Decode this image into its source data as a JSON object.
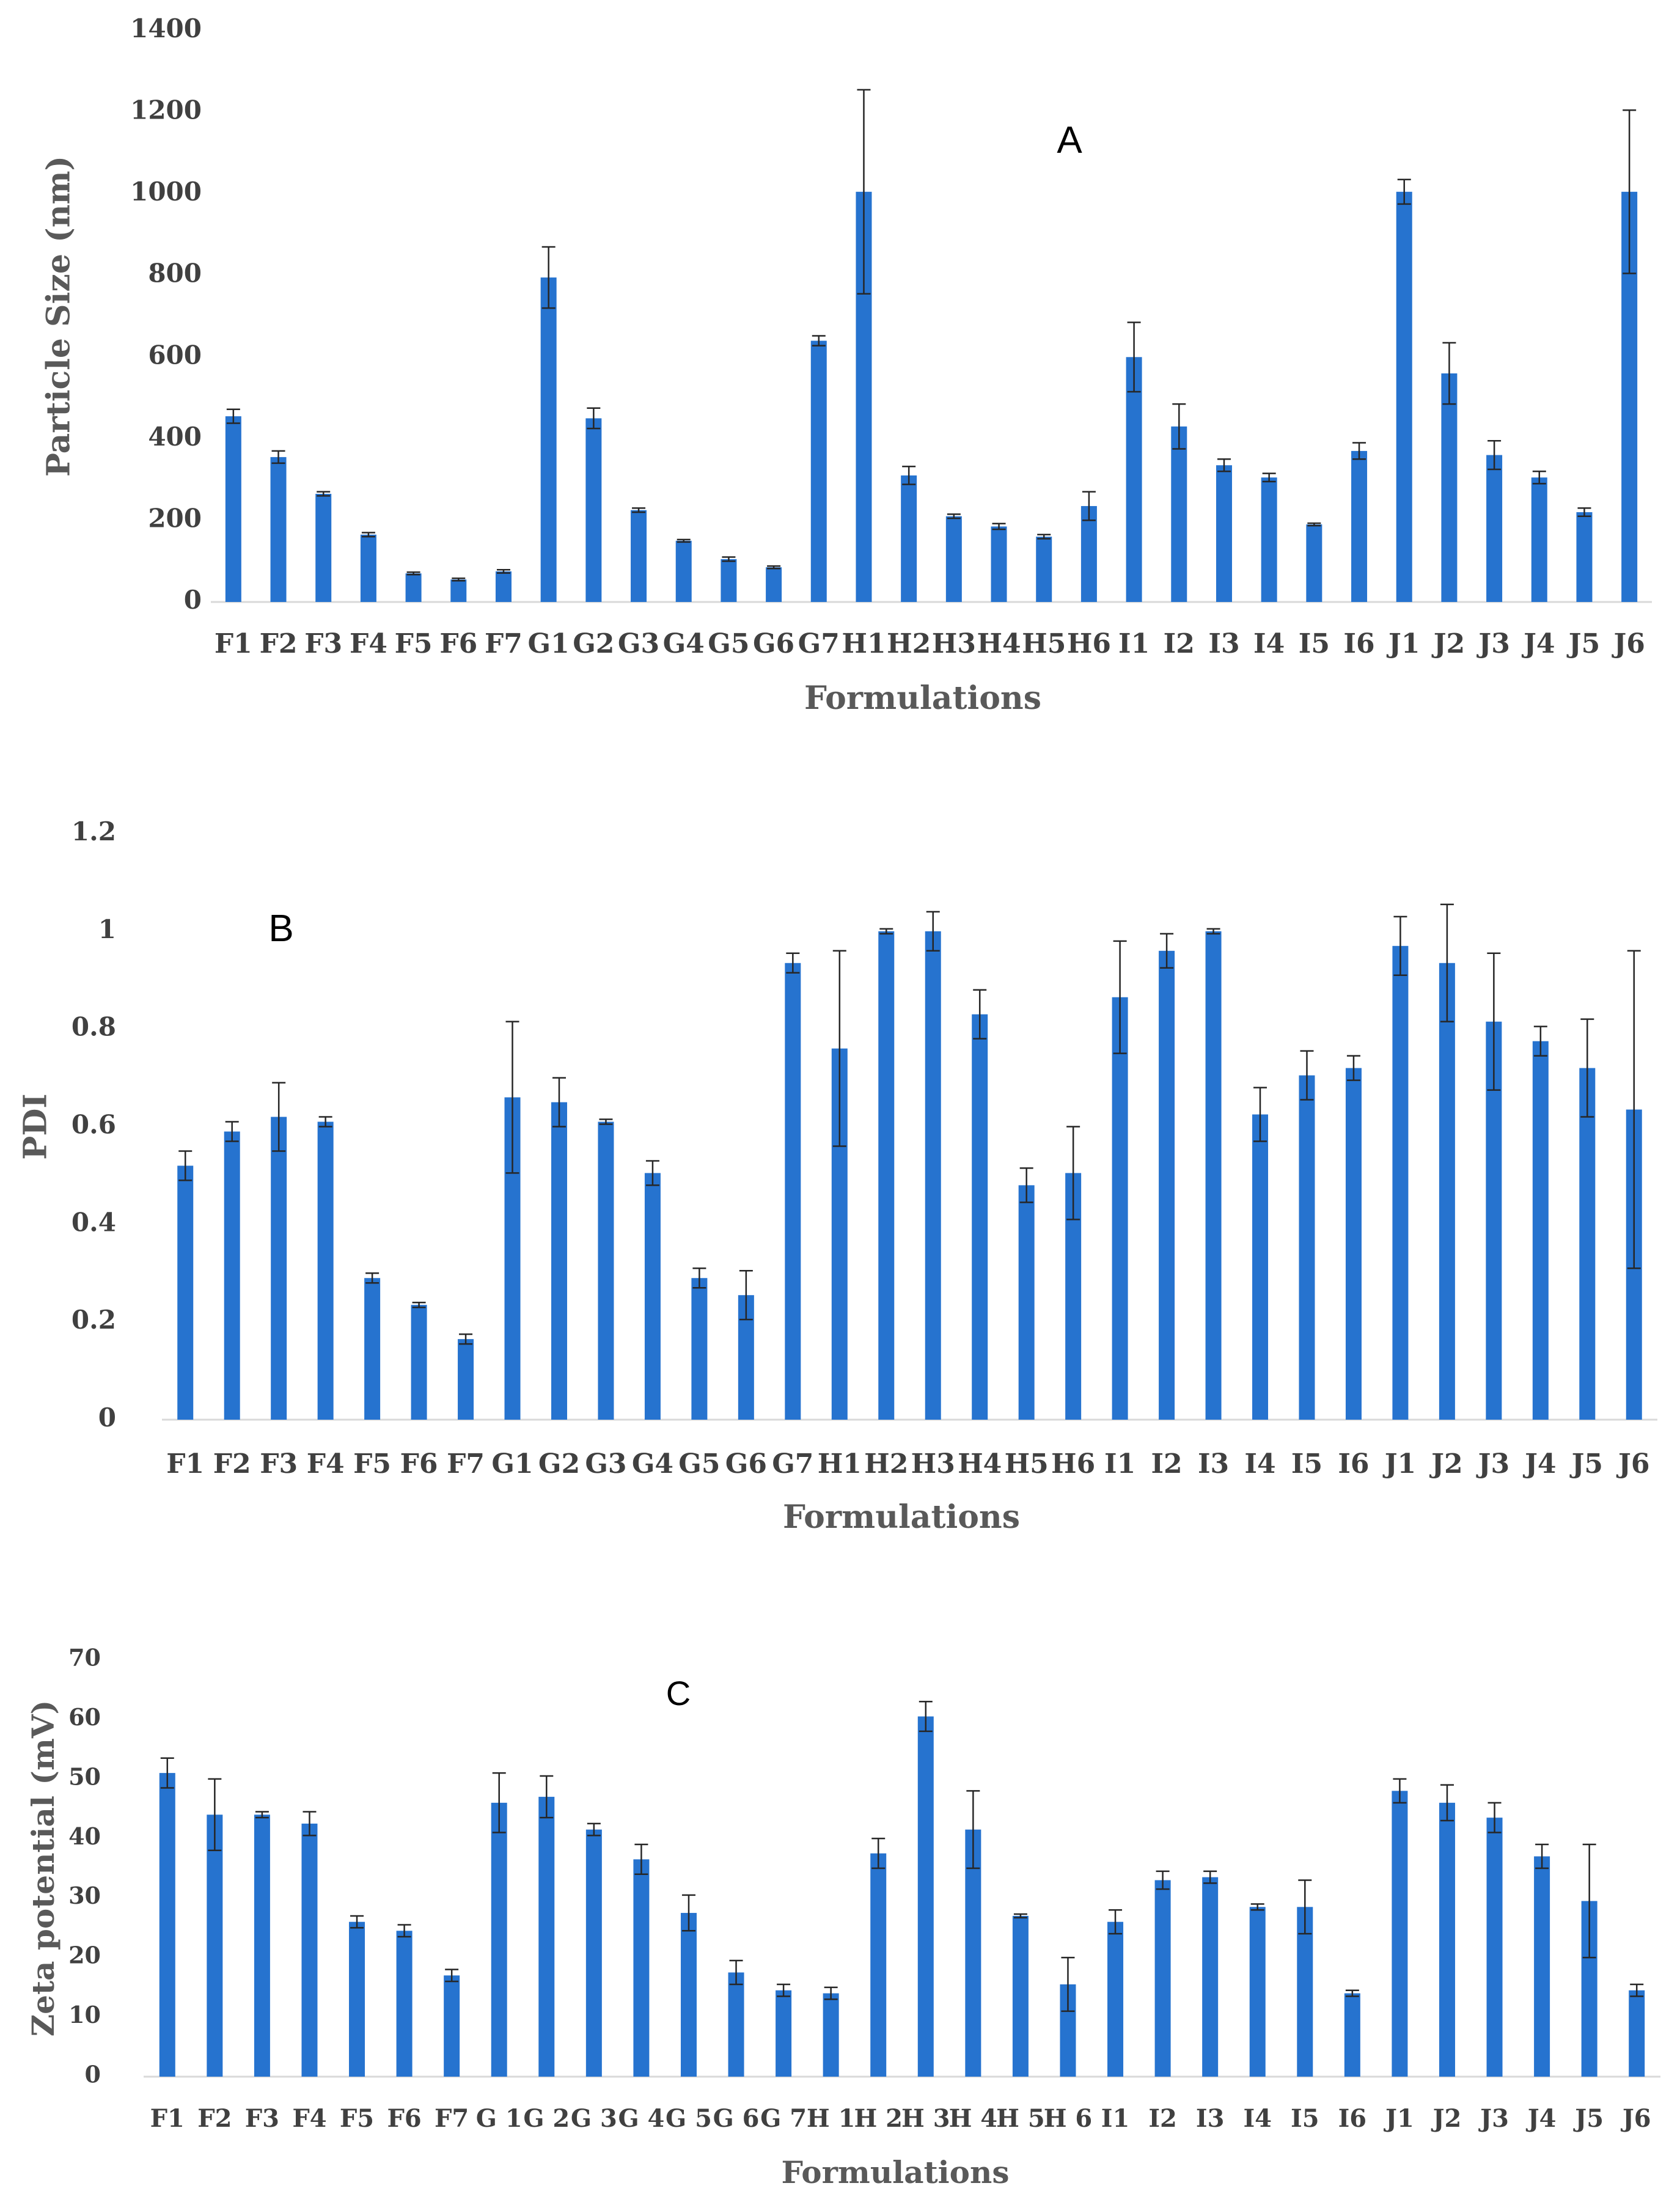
{
  "chart_data": [
    {
      "type": "bar",
      "panel_label": "A",
      "title": "",
      "xlabel": "Formulations",
      "ylabel": "Particle Size (nm)",
      "ylim": [
        0,
        1400
      ],
      "yticks": [
        "0",
        "200",
        "400",
        "600",
        "800",
        "1000",
        "1200",
        "1400"
      ],
      "categories": [
        "F1",
        "F2",
        "F3",
        "F4",
        "F5",
        "F6",
        "F7",
        "G1",
        "G2",
        "G3",
        "G4",
        "G5",
        "G6",
        "G7",
        "H1",
        "H2",
        "H3",
        "H4",
        "H5",
        "H6",
        "I1",
        "I2",
        "I3",
        "I4",
        "I5",
        "I6",
        "J1",
        "J2",
        "J3",
        "J4",
        "J5",
        "J6"
      ],
      "category_labels": [
        "F1",
        "F2",
        "F3",
        "F4",
        "F5",
        "F6",
        "F7",
        "G1",
        "G2",
        "G3",
        "G4",
        "G5",
        "G6",
        "G7",
        "H1",
        "H2",
        "H3",
        "H4",
        "H5",
        "H6",
        "I1",
        "I2",
        "I3",
        "I4",
        "I5",
        "I6",
        "J1",
        "J2",
        "J3",
        "J4",
        "J5",
        "J6"
      ],
      "series": [
        {
          "name": "Particle Size",
          "values": [
            455,
            355,
            265,
            165,
            70,
            55,
            75,
            795,
            450,
            225,
            150,
            105,
            85,
            640,
            1005,
            310,
            210,
            185,
            160,
            235,
            600,
            430,
            335,
            305,
            190,
            370,
            1005,
            560,
            360,
            305,
            220,
            1005
          ],
          "errors": [
            17,
            15,
            5,
            5,
            3,
            3,
            4,
            75,
            25,
            5,
            3,
            5,
            3,
            12,
            250,
            22,
            5,
            7,
            5,
            35,
            85,
            55,
            15,
            10,
            3,
            20,
            30,
            75,
            35,
            15,
            10,
            200
          ]
        }
      ]
    },
    {
      "type": "bar",
      "panel_label": "B",
      "title": "",
      "xlabel": "Formulations",
      "ylabel": "PDI",
      "ylim": [
        0,
        1.2
      ],
      "yticks": [
        "0",
        "0.2",
        "0.4",
        "0.6",
        "0.8",
        "1",
        "1.2"
      ],
      "categories": [
        "F1",
        "F2",
        "F3",
        "F4",
        "F5",
        "F6",
        "F7",
        "G1",
        "G2",
        "G3",
        "G4",
        "G5",
        "G6",
        "G7",
        "H1",
        "H2",
        "H3",
        "H4",
        "H5",
        "H6",
        "I1",
        "I2",
        "I3",
        "I4",
        "I5",
        "I6",
        "J1",
        "J2",
        "J3",
        "J4",
        "J5",
        "J6"
      ],
      "category_labels": [
        "F1",
        "F2",
        "F3",
        "F4",
        "F5",
        "F6",
        "F7",
        "G1",
        "G2",
        "G3",
        "G4",
        "G5",
        "G6",
        "G7",
        "H1",
        "H2",
        "H3",
        "H4",
        "H5",
        "H6",
        "I1",
        "I2",
        "I3",
        "I4",
        "I5",
        "I6",
        "J1",
        "J2",
        "J3",
        "J4",
        "J5",
        "J6"
      ],
      "series": [
        {
          "name": "PDI",
          "values": [
            0.52,
            0.59,
            0.62,
            0.61,
            0.29,
            0.235,
            0.165,
            0.66,
            0.65,
            0.61,
            0.505,
            0.29,
            0.255,
            0.935,
            0.76,
            1.0,
            1.0,
            0.83,
            0.48,
            0.505,
            0.865,
            0.96,
            1.0,
            0.625,
            0.705,
            0.72,
            0.97,
            0.935,
            0.815,
            0.775,
            0.72,
            0.635
          ],
          "errors": [
            0.03,
            0.02,
            0.07,
            0.01,
            0.01,
            0.005,
            0.01,
            0.155,
            0.05,
            0.005,
            0.025,
            0.02,
            0.05,
            0.02,
            0.2,
            0.005,
            0.04,
            0.05,
            0.035,
            0.095,
            0.115,
            0.035,
            0.005,
            0.055,
            0.05,
            0.025,
            0.06,
            0.12,
            0.14,
            0.03,
            0.1,
            0.325
          ]
        }
      ]
    },
    {
      "type": "bar",
      "panel_label": "C",
      "title": "",
      "xlabel": "Formulations",
      "ylabel": "Zeta potential (mV)",
      "ylim": [
        0,
        70
      ],
      "yticks": [
        "0",
        "10",
        "20",
        "30",
        "40",
        "50",
        "60",
        "70"
      ],
      "categories": [
        "F1",
        "F2",
        "F3",
        "F4",
        "F5",
        "F6",
        "F7",
        "G1",
        "G2",
        "G3",
        "G4",
        "G5",
        "G6",
        "G7",
        "H1",
        "H2",
        "H3",
        "H4",
        "H5",
        "H6",
        "I1",
        "I2",
        "I3",
        "I4",
        "I5",
        "I6",
        "J1",
        "J2",
        "J3",
        "J4",
        "J5",
        "J6"
      ],
      "category_labels": [
        "F1",
        "F2",
        "F3",
        "F4",
        "F5",
        "F6",
        "F7",
        "G 1",
        "G 2",
        "G 3",
        "G 4",
        "G 5",
        "G 6",
        "G 7",
        "H 1",
        "H 2",
        "H 3",
        "H 4",
        "H 5",
        "H 6",
        "I1",
        "I2",
        "I3",
        "I4",
        "I5",
        "I6",
        "J1",
        "J2",
        "J3",
        "J4",
        "J5",
        "J6"
      ],
      "series": [
        {
          "name": "Zeta potential",
          "values": [
            51,
            44,
            44,
            42.5,
            26,
            24.5,
            17,
            46,
            47,
            41.5,
            36.5,
            27.5,
            17.5,
            14.5,
            14,
            37.5,
            60.5,
            41.5,
            27,
            15.5,
            26,
            33,
            33.5,
            28.5,
            28.5,
            14,
            48,
            46,
            43.5,
            37,
            29.5,
            14.5
          ],
          "errors": [
            2.5,
            6,
            0.5,
            2,
            1,
            1,
            1,
            5,
            3.5,
            1,
            2.5,
            3,
            2,
            1,
            1,
            2.5,
            2.5,
            6.5,
            0.3,
            4.5,
            2,
            1.5,
            1,
            0.5,
            4.5,
            0.5,
            2,
            3,
            2.5,
            2,
            9.5,
            1
          ]
        }
      ]
    }
  ]
}
